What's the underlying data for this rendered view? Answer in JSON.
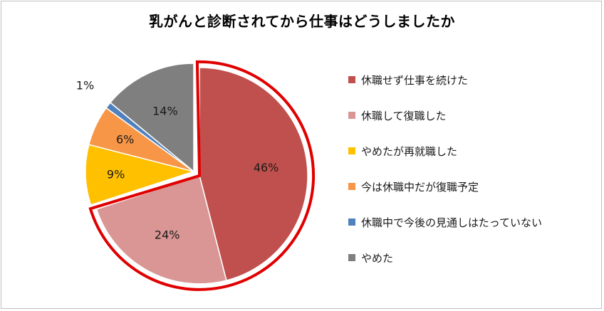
{
  "chart_data": {
    "type": "pie",
    "title": "乳がんと診断されてから仕事はどうしましたか",
    "legend_position": "right",
    "slices": [
      {
        "name": "休職せず仕事を続けた",
        "value": 46,
        "label": "46%",
        "color": "#c0504d"
      },
      {
        "name": "休職して復職した",
        "value": 24,
        "label": "24%",
        "color": "#d99694"
      },
      {
        "name": "やめたが再就職した",
        "value": 9,
        "label": "9%",
        "color": "#ffc000"
      },
      {
        "name": "今は休職中だが復職予定",
        "value": 6,
        "label": "6%",
        "color": "#f79646"
      },
      {
        "name": "休職中で今後の見通しはたっていない",
        "value": 1,
        "label": "1%",
        "color": "#4f81bd"
      },
      {
        "name": "やめた",
        "value": 14,
        "label": "14%",
        "color": "#7f7f7f"
      }
    ],
    "highlight": {
      "slices": [
        "休職せず仕事を続けた",
        "休職して復職した"
      ],
      "outline_color": "#e00000"
    }
  }
}
